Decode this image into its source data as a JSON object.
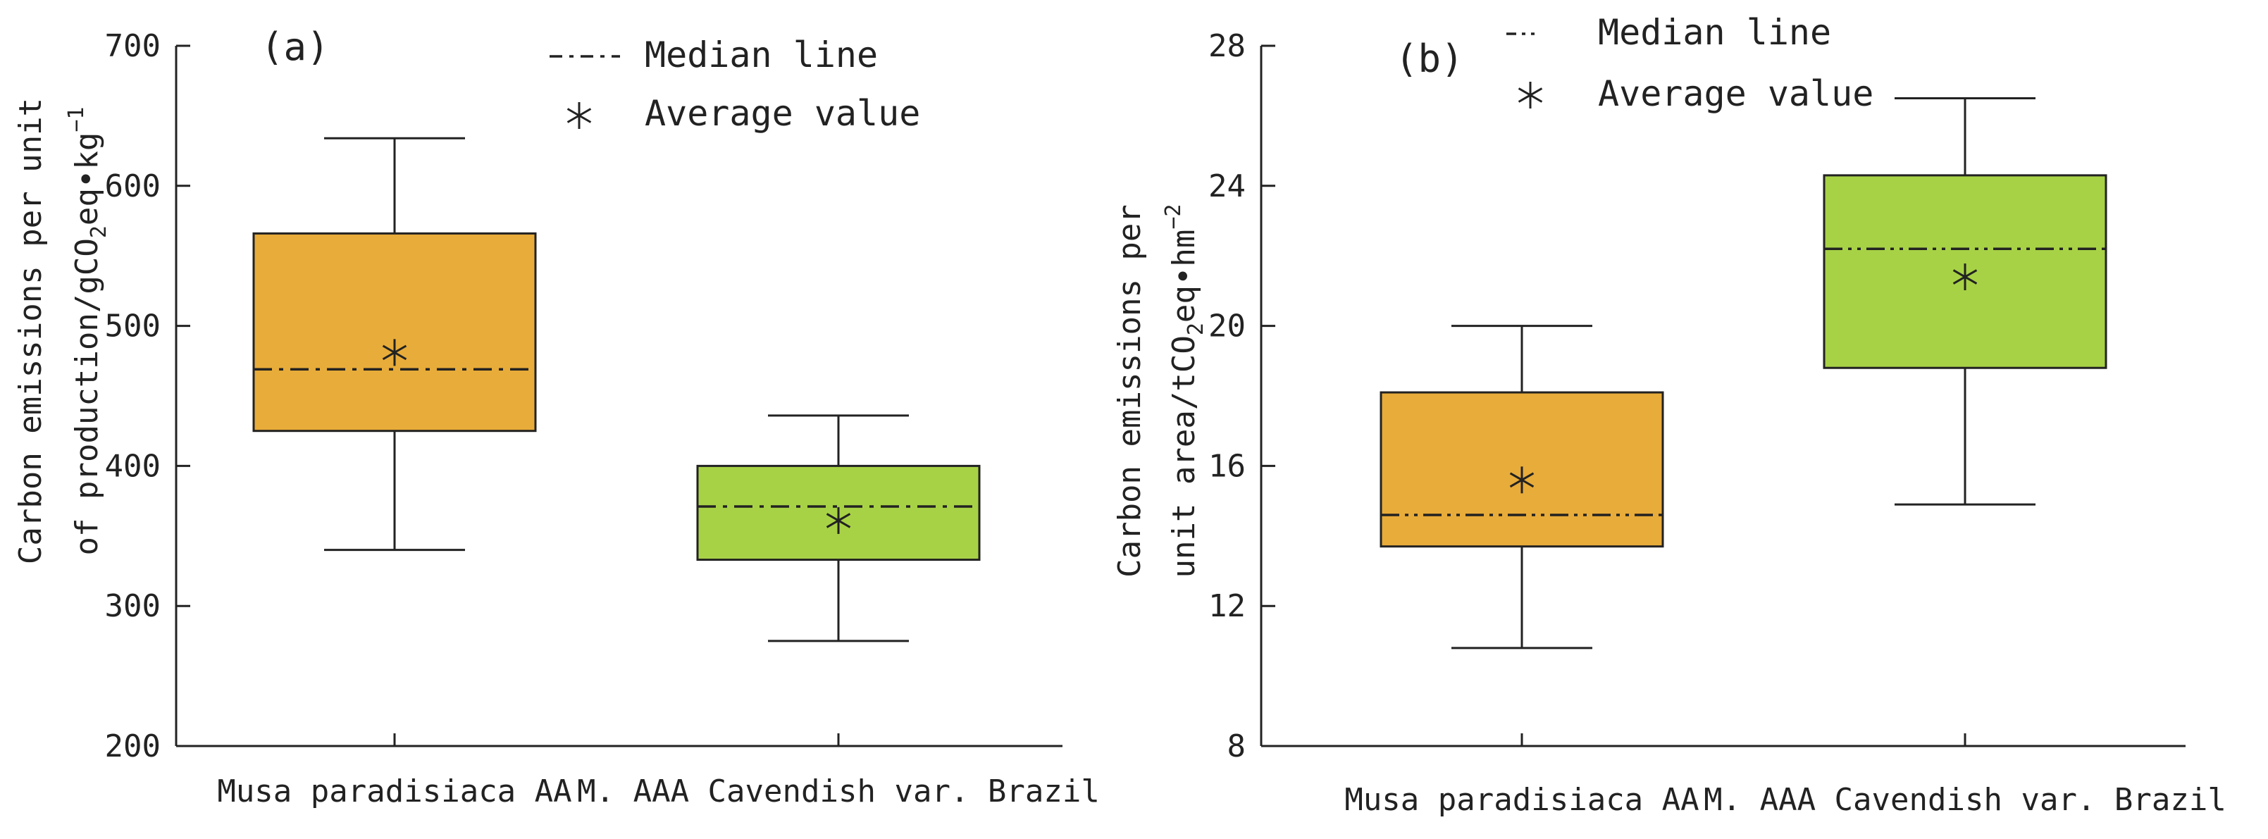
{
  "colors": {
    "box_a": "#E8AC3A",
    "box_b": "#A8D246",
    "ink": "#222222"
  },
  "chart_data": [
    {
      "type": "box",
      "panel_label": "(a)",
      "ylabel_line1": "Carbon emissions per unit",
      "ylabel_line2": "of production/gCO",
      "ylabel_line2_sub": "2",
      "ylabel_line2_tail": "eq•kg",
      "ylabel_line2_sup": "−1",
      "ylim": [
        200,
        700
      ],
      "yticks": [
        200,
        300,
        400,
        500,
        600,
        700
      ],
      "legend": {
        "median": "Median line",
        "mean": "Average value"
      },
      "categories": [
        "Musa paradisiaca AA",
        "M. AAA Cavendish var. Brazil"
      ],
      "boxes": [
        {
          "label": "Musa paradisiaca AA",
          "whisker_low": 340,
          "q1": 425,
          "median": 469,
          "q3": 566,
          "whisker_high": 634,
          "mean": 481,
          "color": "#E8AC3A"
        },
        {
          "label": "M. AAA Cavendish var. Brazil",
          "whisker_low": 275,
          "q1": 333,
          "median": 371,
          "q3": 400,
          "whisker_high": 436,
          "mean": 361,
          "color": "#A8D246"
        }
      ]
    },
    {
      "type": "box",
      "panel_label": "(b)",
      "ylabel_line1": "Carbon emissions per",
      "ylabel_line2": "unit area/tCO",
      "ylabel_line2_sub": "2",
      "ylabel_line2_tail": "eq•hm",
      "ylabel_line2_sup": "−2",
      "ylim": [
        8,
        28
      ],
      "yticks": [
        8,
        12,
        16,
        20,
        24,
        28
      ],
      "legend": {
        "median": "Median line",
        "mean": "Average value"
      },
      "categories": [
        "Musa paradisiaca AA",
        "M. AAA Cavendish var. Brazil"
      ],
      "boxes": [
        {
          "label": "Musa paradisiaca AA",
          "whisker_low": 10.8,
          "q1": 13.7,
          "median": 14.6,
          "q3": 18.1,
          "whisker_high": 20.0,
          "mean": 15.6,
          "color": "#E8AC3A"
        },
        {
          "label": "M. AAA Cavendish var. Brazil",
          "whisker_low": 14.9,
          "q1": 18.8,
          "median": 22.2,
          "q3": 24.3,
          "whisker_high": 26.5,
          "mean": 21.4,
          "color": "#A8D246"
        }
      ]
    }
  ]
}
